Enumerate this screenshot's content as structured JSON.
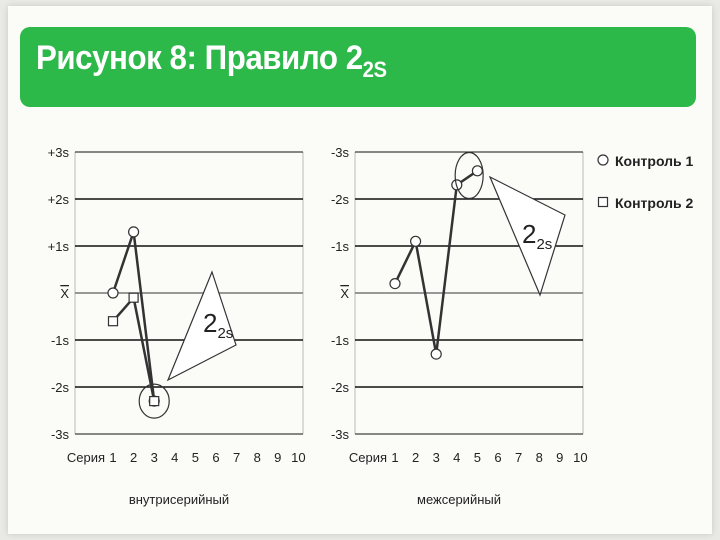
{
  "header": {
    "title_main": "Рисунок 8: Правило 2",
    "title_sub": "2S"
  },
  "colors": {
    "banner": "#2db84a",
    "grid": "#111111",
    "series_line": "#333333"
  },
  "chart_data": [
    {
      "type": "line",
      "xlabel": "внутрисерийный",
      "x_label_prefix": "Серия",
      "x_ticks": [
        "1",
        "2",
        "3",
        "4",
        "5",
        "6",
        "7",
        "8",
        "9",
        "10"
      ],
      "y_ticks": [
        "+3s",
        "+2s",
        "+1s",
        "X",
        "-1s",
        "-2s",
        "-3s"
      ],
      "ylim": [
        -3,
        3
      ],
      "series": [
        {
          "marker": "circle",
          "points": [
            [
              1,
              0.0
            ],
            [
              2,
              1.3
            ],
            [
              3,
              -2.3
            ]
          ]
        },
        {
          "marker": "square",
          "points": [
            [
              1,
              -0.6
            ],
            [
              2,
              -0.1
            ],
            [
              3,
              -2.3
            ]
          ]
        }
      ],
      "callout": {
        "label_main": "2",
        "label_sub": "2s"
      }
    },
    {
      "type": "line",
      "xlabel": "межсерийный",
      "x_label_prefix": "Серия",
      "x_ticks": [
        "1",
        "2",
        "3",
        "4",
        "5",
        "6",
        "7",
        "8",
        "9",
        "10"
      ],
      "y_ticks": [
        "-3s",
        "-2s",
        "-1s",
        "X",
        "-1s",
        "-2s",
        "-3s"
      ],
      "ylim": [
        -3,
        3
      ],
      "series": [
        {
          "marker": "circle",
          "points": [
            [
              1,
              0.2
            ],
            [
              2,
              1.1
            ],
            [
              3,
              -1.3
            ],
            [
              4,
              2.3
            ],
            [
              5,
              2.6
            ]
          ]
        }
      ],
      "legend": [
        "Контроль 1",
        "Контроль 2"
      ],
      "callout": {
        "label_main": "2",
        "label_sub": "2s"
      }
    }
  ]
}
